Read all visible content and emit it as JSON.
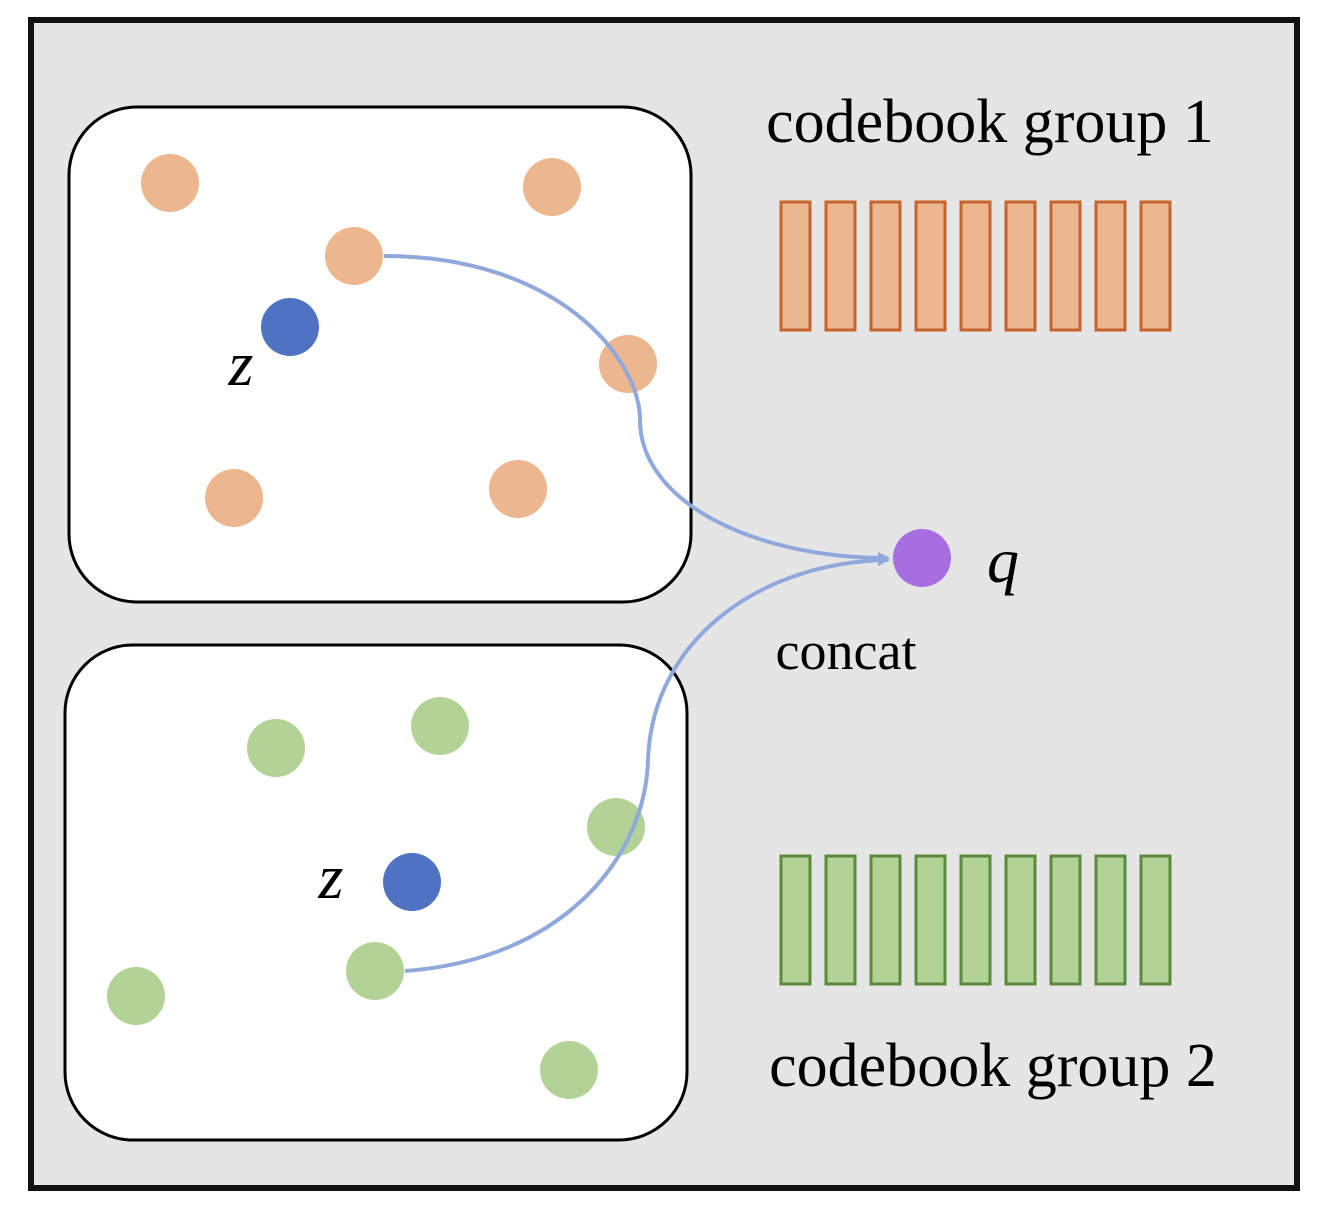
{
  "colors": {
    "background": "#e5e5e5",
    "frame": "#111111",
    "panel": "#ffffff",
    "orange_fill": "#ecb78e",
    "orange_stroke": "#c8632d",
    "green_fill": "#b2d296",
    "green_stroke": "#5b8a3c",
    "z_point": "#4f72c3",
    "q_point": "#a66ee0",
    "arrow": "#91a8dd"
  },
  "labels": {
    "codebook_group_1": "codebook group 1",
    "codebook_group_2": "codebook group 2",
    "concat": "concat",
    "q": "q",
    "z_top": "z",
    "z_bottom": "z"
  },
  "codebook_groups": [
    {
      "label": "codebook group 1",
      "color": "orange",
      "entries": 9
    },
    {
      "label": "codebook group 2",
      "color": "green",
      "entries": 9
    }
  ]
}
